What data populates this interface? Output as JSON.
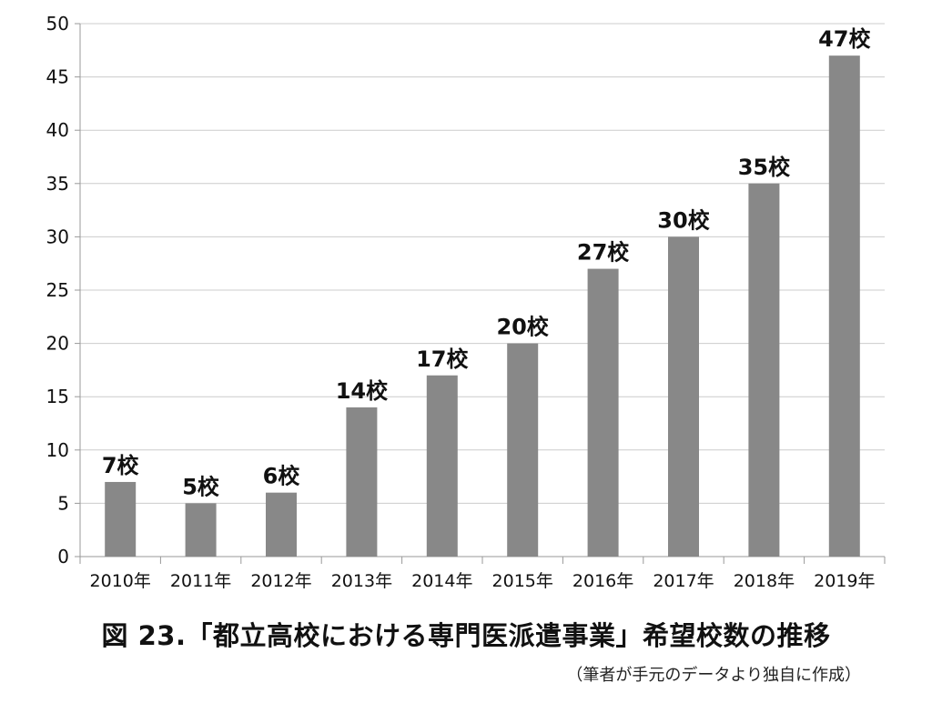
{
  "chart_data": {
    "type": "bar",
    "categories": [
      "2010年",
      "2011年",
      "2012年",
      "2013年",
      "2014年",
      "2015年",
      "2016年",
      "2017年",
      "2018年",
      "2019年"
    ],
    "values": [
      7,
      5,
      6,
      14,
      17,
      20,
      27,
      30,
      35,
      47
    ],
    "data_labels": [
      "7校",
      "5校",
      "6校",
      "14校",
      "17校",
      "20校",
      "27校",
      "30校",
      "35校",
      "47校"
    ],
    "yticks": [
      "0",
      "5",
      "10",
      "15",
      "20",
      "25",
      "30",
      "35",
      "40",
      "45",
      "50"
    ],
    "ylim": [
      0,
      50
    ],
    "ytick_step": 5,
    "grid": true,
    "legend": false,
    "bar_color": "#888888",
    "grid_color": "#cccccc"
  },
  "caption": "図 23.「都立高校における専門医派遣事業」希望校数の推移",
  "source_note": "（筆者が手元のデータより独自に作成）"
}
